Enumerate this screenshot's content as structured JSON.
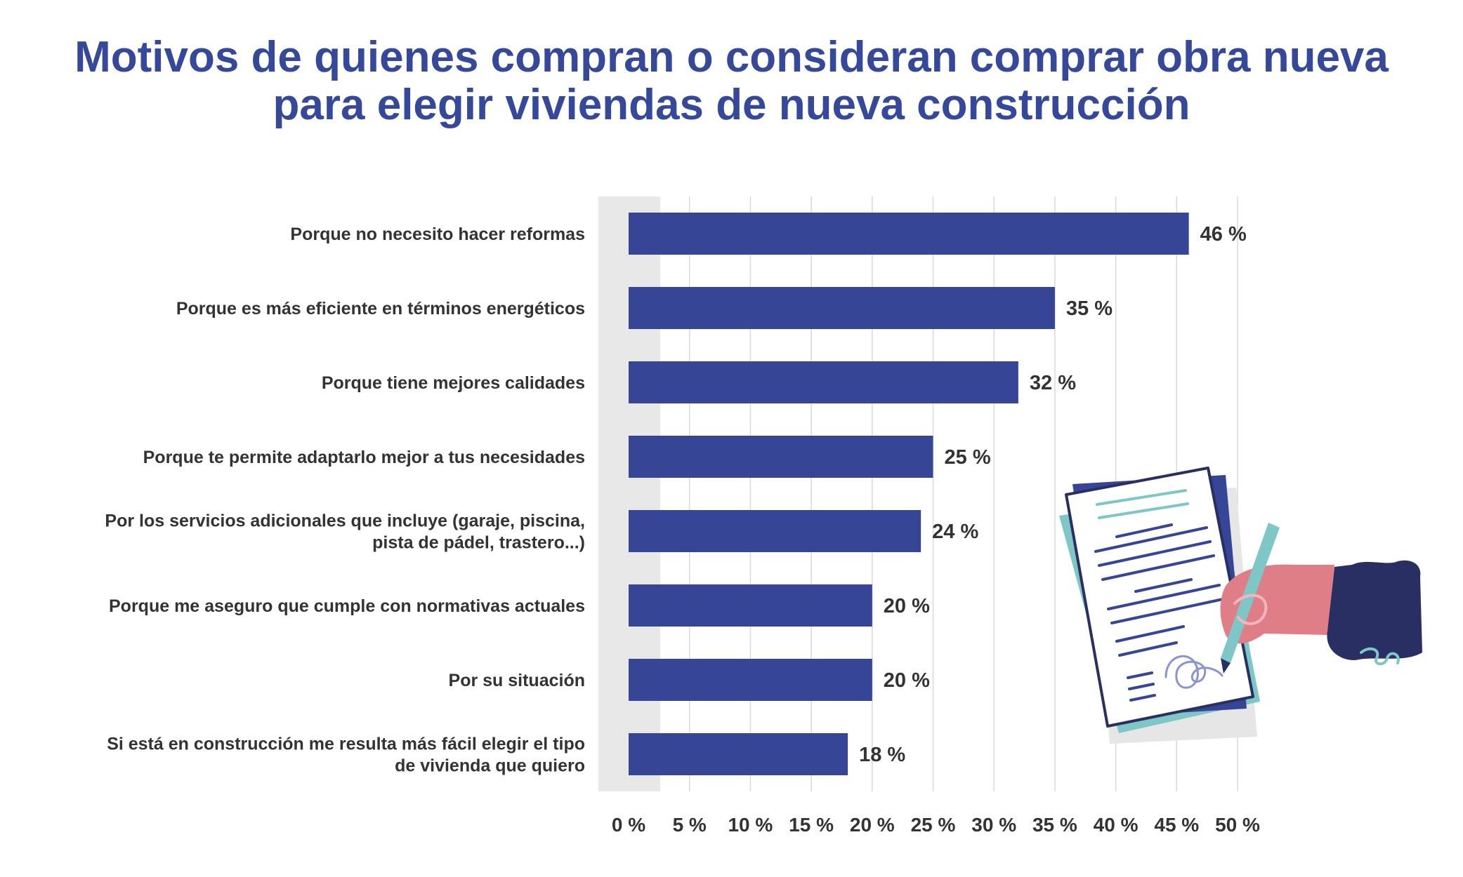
{
  "title": {
    "line1": "Motivos de quienes compran o consideran comprar obra nueva",
    "line2": "para elegir viviendas de nueva construcción"
  },
  "colors": {
    "bar": "#364596",
    "band": "#e8e8e8",
    "grid": "#d9d9d9",
    "text": "#333333",
    "title": "#36489a"
  },
  "chart_data": {
    "type": "bar",
    "orientation": "horizontal",
    "categories": [
      [
        "Porque no necesito hacer reformas"
      ],
      [
        "Porque es más eficiente en términos energéticos"
      ],
      [
        "Porque tiene mejores calidades"
      ],
      [
        "Porque te permite adaptarlo mejor a tus necesidades"
      ],
      [
        "Por los servicios adicionales que incluye (garaje, piscina,",
        "pista de pádel, trastero...)"
      ],
      [
        "Porque me aseguro que cumple con normativas actuales"
      ],
      [
        "Por su situación"
      ],
      [
        "Si está en construcción me resulta más fácil elegir el tipo",
        "de vivienda que quiero"
      ]
    ],
    "values": [
      46,
      35,
      32,
      25,
      24,
      20,
      20,
      18
    ],
    "value_labels": [
      "46 %",
      "35 %",
      "32 %",
      "25 %",
      "24 %",
      "20 %",
      "20 %",
      "18 %"
    ],
    "x_ticks": [
      0,
      5,
      10,
      15,
      20,
      25,
      30,
      35,
      40,
      45,
      50
    ],
    "x_tick_labels": [
      "0 %",
      "5 %",
      "10 %",
      "15 %",
      "20 %",
      "25 %",
      "30 %",
      "35 %",
      "40 %",
      "45 %",
      "50 %"
    ],
    "xlim": [
      0,
      50
    ],
    "grid": true,
    "xlabel": "",
    "ylabel": ""
  },
  "illustration": {
    "icon": "hand-signing-document-icon"
  }
}
